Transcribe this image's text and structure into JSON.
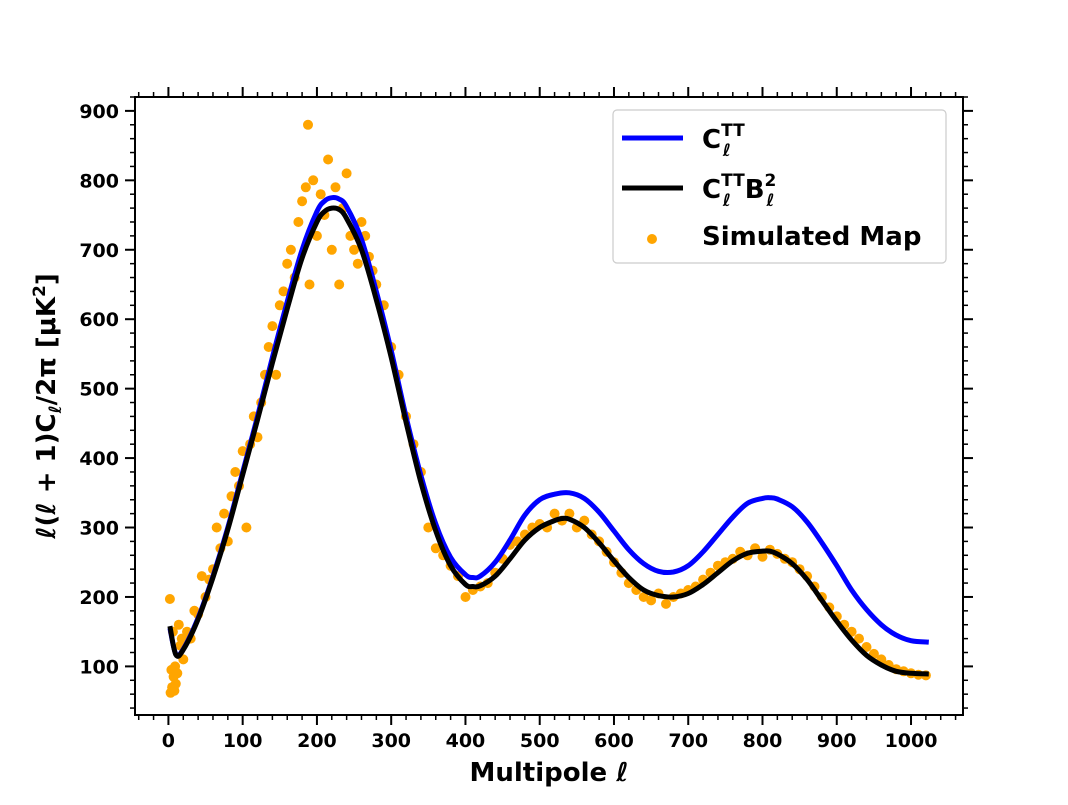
{
  "chart_data": {
    "type": "scatter",
    "xlabel": "Multipole ℓ",
    "ylabel": "ℓ(ℓ + 1)Cℓ/2π [μK²]",
    "xlim": [
      -45,
      1070
    ],
    "ylim": [
      30,
      920
    ],
    "x_ticks": [
      0,
      100,
      200,
      300,
      400,
      500,
      600,
      700,
      800,
      900,
      1000
    ],
    "y_ticks": [
      100,
      200,
      300,
      400,
      500,
      600,
      700,
      800,
      900
    ],
    "grid": false,
    "legend_position": "top-right",
    "colors": {
      "theory": "#0000ff",
      "beamed": "#000000",
      "simulated": "#ffa500"
    },
    "series": [
      {
        "name": "Cℓ^TT",
        "type": "line",
        "x": [
          2,
          10,
          20,
          40,
          60,
          80,
          100,
          120,
          140,
          160,
          180,
          200,
          210,
          220,
          230,
          240,
          260,
          280,
          300,
          320,
          340,
          360,
          380,
          400,
          410,
          420,
          440,
          460,
          480,
          500,
          520,
          540,
          560,
          580,
          600,
          620,
          640,
          660,
          680,
          700,
          720,
          740,
          760,
          780,
          800,
          810,
          820,
          840,
          860,
          880,
          900,
          920,
          940,
          960,
          980,
          1000,
          1024
        ],
        "y": [
          155,
          118,
          125,
          170,
          230,
          300,
          380,
          460,
          545,
          625,
          700,
          755,
          770,
          775,
          773,
          762,
          715,
          640,
          555,
          460,
          375,
          305,
          257,
          232,
          228,
          230,
          250,
          282,
          318,
          340,
          348,
          350,
          342,
          322,
          295,
          268,
          248,
          237,
          236,
          245,
          265,
          290,
          315,
          335,
          342,
          343,
          341,
          330,
          308,
          278,
          245,
          210,
          182,
          160,
          145,
          137,
          135
        ]
      },
      {
        "name": "Cℓ^TT Bℓ²",
        "type": "line",
        "x": [
          2,
          10,
          20,
          40,
          60,
          80,
          100,
          120,
          140,
          160,
          180,
          200,
          210,
          220,
          230,
          240,
          260,
          280,
          300,
          320,
          340,
          360,
          380,
          400,
          410,
          420,
          440,
          460,
          480,
          500,
          520,
          530,
          540,
          560,
          580,
          600,
          620,
          640,
          660,
          680,
          700,
          720,
          740,
          760,
          780,
          800,
          810,
          820,
          840,
          860,
          880,
          900,
          920,
          940,
          960,
          980,
          1000,
          1024
        ],
        "y": [
          158,
          117,
          124,
          168,
          228,
          297,
          376,
          455,
          537,
          615,
          688,
          740,
          755,
          760,
          758,
          745,
          700,
          628,
          545,
          452,
          365,
          295,
          245,
          218,
          215,
          216,
          230,
          255,
          282,
          300,
          310,
          313,
          312,
          300,
          278,
          252,
          228,
          210,
          202,
          200,
          205,
          218,
          235,
          252,
          263,
          266,
          266,
          262,
          248,
          225,
          195,
          165,
          138,
          116,
          102,
          93,
          90,
          89
        ]
      },
      {
        "name": "Simulated Map",
        "type": "scatter",
        "x": [
          2,
          3,
          4,
          5,
          6,
          7,
          8,
          9,
          10,
          12,
          14,
          16,
          18,
          20,
          25,
          30,
          35,
          40,
          45,
          50,
          55,
          60,
          65,
          70,
          75,
          80,
          85,
          90,
          95,
          100,
          105,
          110,
          115,
          120,
          125,
          130,
          135,
          140,
          145,
          150,
          155,
          160,
          165,
          170,
          175,
          180,
          185,
          188,
          190,
          195,
          200,
          205,
          210,
          215,
          220,
          225,
          230,
          235,
          240,
          245,
          250,
          255,
          260,
          265,
          270,
          275,
          280,
          290,
          300,
          310,
          320,
          330,
          340,
          350,
          360,
          370,
          380,
          390,
          400,
          410,
          420,
          430,
          440,
          450,
          460,
          470,
          480,
          490,
          500,
          510,
          520,
          530,
          540,
          550,
          560,
          570,
          580,
          590,
          600,
          610,
          620,
          630,
          640,
          650,
          660,
          670,
          680,
          690,
          700,
          710,
          720,
          730,
          740,
          750,
          760,
          770,
          780,
          790,
          800,
          810,
          820,
          830,
          840,
          850,
          860,
          870,
          880,
          890,
          900,
          910,
          920,
          930,
          940,
          950,
          960,
          970,
          980,
          990,
          1000,
          1010,
          1020
        ],
        "y": [
          197,
          62,
          95,
          70,
          150,
          85,
          65,
          100,
          75,
          90,
          160,
          130,
          140,
          110,
          150,
          140,
          180,
          175,
          230,
          200,
          225,
          240,
          300,
          270,
          320,
          280,
          345,
          380,
          360,
          410,
          300,
          420,
          460,
          430,
          480,
          520,
          560,
          590,
          520,
          620,
          640,
          680,
          700,
          660,
          740,
          770,
          790,
          880,
          650,
          800,
          720,
          780,
          750,
          830,
          700,
          790,
          650,
          760,
          810,
          720,
          700,
          680,
          740,
          720,
          690,
          670,
          650,
          620,
          560,
          520,
          460,
          420,
          380,
          300,
          270,
          260,
          245,
          230,
          200,
          210,
          215,
          220,
          235,
          255,
          275,
          280,
          290,
          300,
          305,
          300,
          320,
          310,
          320,
          300,
          310,
          290,
          280,
          265,
          250,
          235,
          220,
          210,
          200,
          195,
          205,
          190,
          200,
          205,
          210,
          215,
          225,
          235,
          245,
          250,
          255,
          265,
          260,
          270,
          258,
          268,
          262,
          255,
          250,
          240,
          230,
          215,
          200,
          185,
          172,
          160,
          150,
          140,
          128,
          118,
          110,
          102,
          96,
          93,
          90,
          88,
          87
        ]
      }
    ]
  },
  "legend": {
    "items": [
      {
        "key": "theory",
        "label_base": "C",
        "label_sup": "TT",
        "label_sub": "ℓ",
        "label_b": ""
      },
      {
        "key": "beamed",
        "label_base": "C",
        "label_sup": "TT",
        "label_sub": "ℓ",
        "label_b": "B",
        "label_b_sup": "2",
        "label_b_sub": "ℓ"
      },
      {
        "key": "simulated",
        "label": "Simulated Map"
      }
    ]
  },
  "ylabel_parts": {
    "prefix": "ℓ(ℓ + 1)C",
    "sub": "ℓ",
    "suffix": "/2π [μK",
    "sup": "2",
    "end": "]"
  }
}
